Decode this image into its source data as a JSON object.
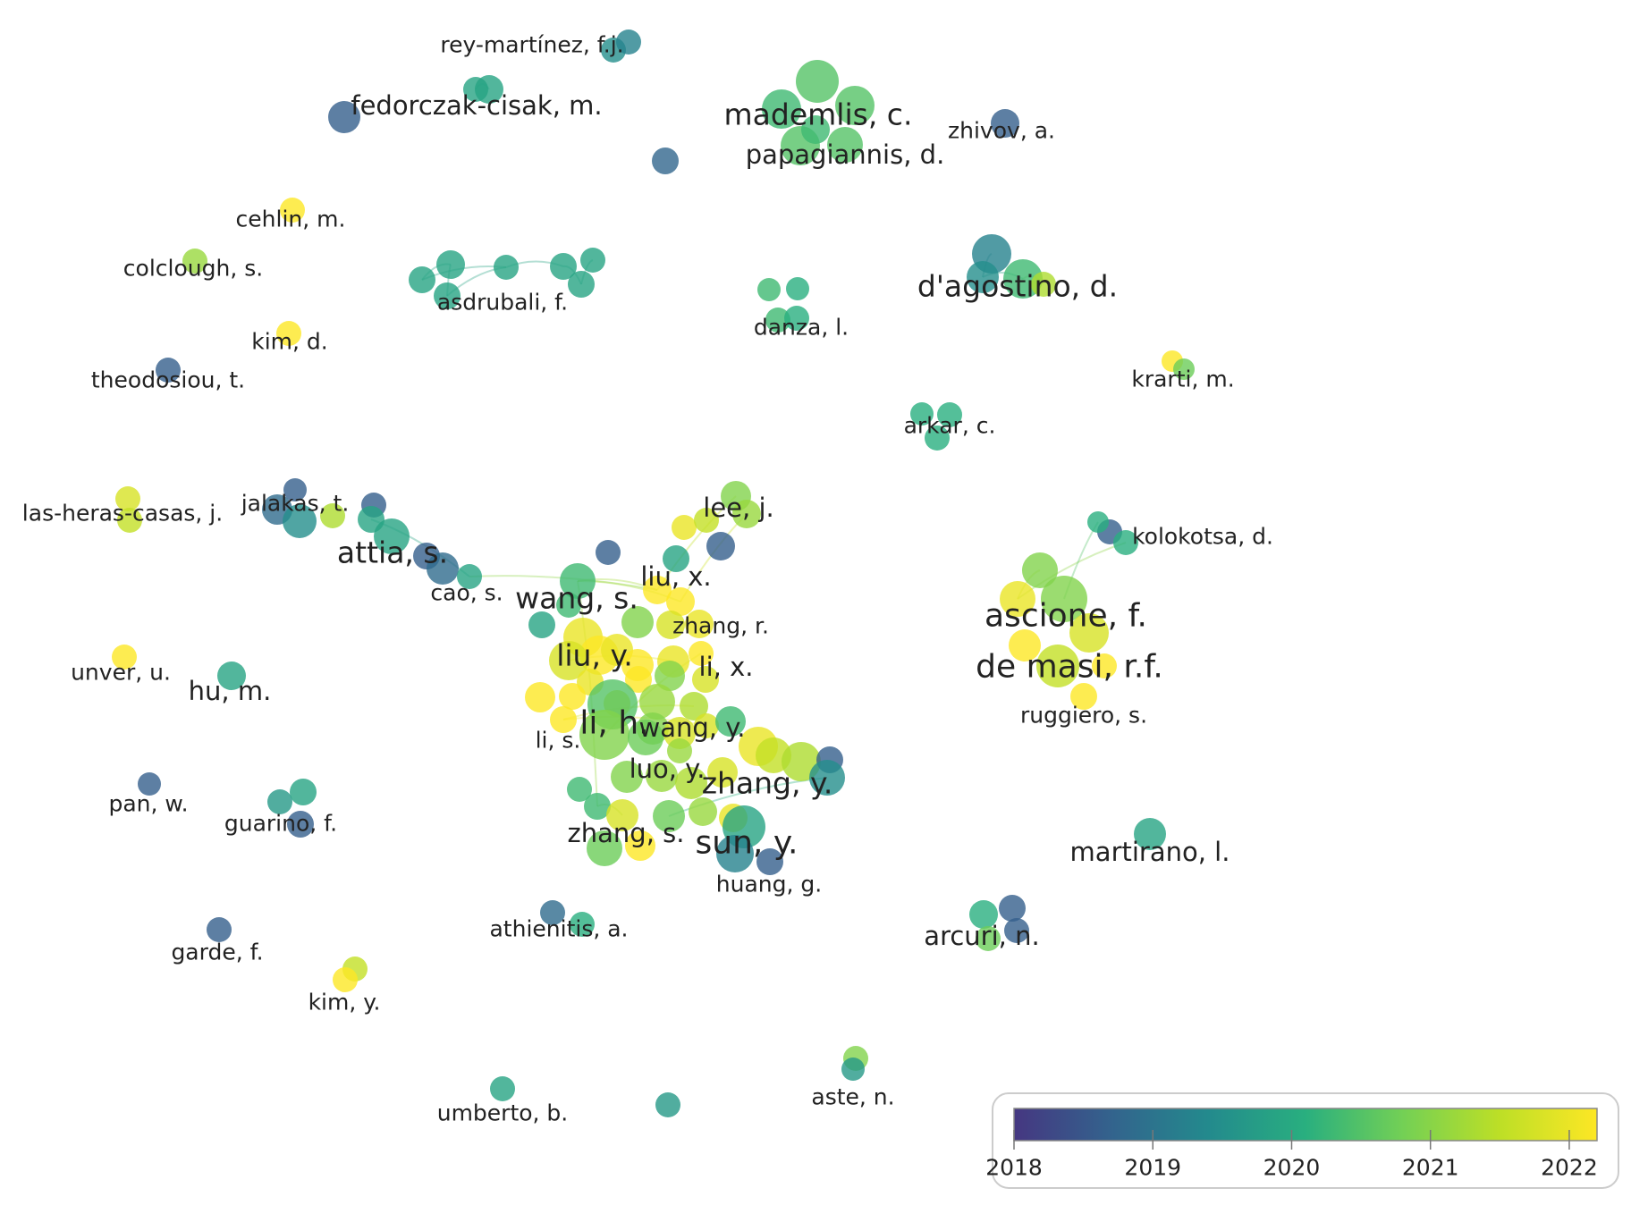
{
  "colorscale": {
    "stops": [
      "#453781",
      "#33638d",
      "#238a8d",
      "#29af7f",
      "#73d055",
      "#bddf26",
      "#fde725"
    ],
    "min": 2018,
    "max": 2022.2,
    "ticks": [
      "2018",
      "2019",
      "2020",
      "2021",
      "2022"
    ]
  },
  "labels": [
    {
      "text": "rey-martínez, f.j.",
      "size": "sm"
    },
    {
      "text": "fedorczak-cisak, m.",
      "size": "md"
    },
    {
      "text": "mademlis, c.",
      "size": "lg"
    },
    {
      "text": "papagiannis, d.",
      "size": "md"
    },
    {
      "text": "zhivov, a.",
      "size": "sm"
    },
    {
      "text": "cehlin, m.",
      "size": "sm"
    },
    {
      "text": "colclough, s.",
      "size": "sm"
    },
    {
      "text": "asdrubali, f.",
      "size": "sm"
    },
    {
      "text": "danza, l.",
      "size": "sm"
    },
    {
      "text": "d'agostino, d.",
      "size": "lg"
    },
    {
      "text": "kim, d.",
      "size": "sm"
    },
    {
      "text": "theodosiou, t.",
      "size": "sm"
    },
    {
      "text": "krarti, m.",
      "size": "sm"
    },
    {
      "text": "arkar, c.",
      "size": "sm"
    },
    {
      "text": "las-heras-casas, j.",
      "size": "sm"
    },
    {
      "text": "jalakas, t.",
      "size": "sm"
    },
    {
      "text": "lee, j.",
      "size": "md"
    },
    {
      "text": "attia, s.",
      "size": "lg"
    },
    {
      "text": "kolokotsa, d.",
      "size": "sm"
    },
    {
      "text": "liu, x.",
      "size": "md"
    },
    {
      "text": "cao, s.",
      "size": "sm"
    },
    {
      "text": "wang, s.",
      "size": "lg"
    },
    {
      "text": "ascione, f.",
      "size": "xl"
    },
    {
      "text": "zhang, r.",
      "size": "sm"
    },
    {
      "text": "liu, y.",
      "size": "lg"
    },
    {
      "text": "li, x.",
      "size": "md"
    },
    {
      "text": "de masi, r.f.",
      "size": "xl"
    },
    {
      "text": "unver, u.",
      "size": "sm"
    },
    {
      "text": "hu, m.",
      "size": "md"
    },
    {
      "text": "ruggiero, s.",
      "size": "sm"
    },
    {
      "text": "li, h.",
      "size": "xl"
    },
    {
      "text": "wang, y.",
      "size": "md"
    },
    {
      "text": "li, s.",
      "size": "sm"
    },
    {
      "text": "luo, y.",
      "size": "md"
    },
    {
      "text": "zhang, y.",
      "size": "lg"
    },
    {
      "text": "pan, w.",
      "size": "sm"
    },
    {
      "text": "guarino, f.",
      "size": "sm"
    },
    {
      "text": "zhang, s.",
      "size": "md"
    },
    {
      "text": "sun, y.",
      "size": "xl"
    },
    {
      "text": "martirano, l.",
      "size": "md"
    },
    {
      "text": "huang, g.",
      "size": "sm"
    },
    {
      "text": "athienitis, a.",
      "size": "sm"
    },
    {
      "text": "arcuri, n.",
      "size": "md"
    },
    {
      "text": "garde, f.",
      "size": "sm"
    },
    {
      "text": "kim, y.",
      "size": "sm"
    },
    {
      "text": "aste, n.",
      "size": "sm"
    },
    {
      "text": "umberto, b.",
      "size": "sm"
    }
  ]
}
